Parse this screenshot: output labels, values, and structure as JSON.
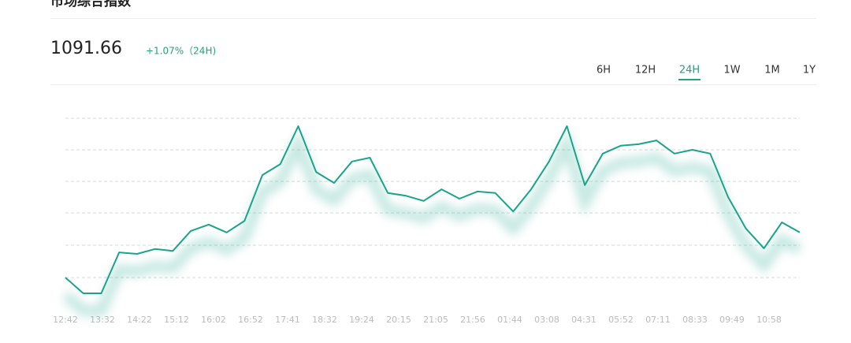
{
  "header": {
    "title": "市场综合指数",
    "price": "1091.66",
    "change": "+1.07%（24H)"
  },
  "tabs": [
    "6H",
    "12H",
    "24H",
    "1W",
    "1M",
    "1Y"
  ],
  "selected_tab": "24H",
  "chart_data": {
    "type": "line",
    "xtick_labels": [
      "12:42",
      "13:32",
      "14:22",
      "15:12",
      "16:02",
      "16:52",
      "17:41",
      "18:32",
      "19:24",
      "20:15",
      "21:05",
      "21:56",
      "01:44",
      "03:08",
      "04:31",
      "05:52",
      "07:11",
      "08:33",
      "09:49",
      "10:58"
    ],
    "values": [
      1079.7,
      1075.5,
      1075.5,
      1086.4,
      1086.0,
      1087.3,
      1086.8,
      1092.1,
      1093.8,
      1091.7,
      1094.8,
      1107.0,
      1109.9,
      1120.0,
      1107.8,
      1104.9,
      1110.6,
      1111.6,
      1102.2,
      1101.5,
      1100.1,
      1103.2,
      1100.7,
      1102.6,
      1102.2,
      1097.3,
      1103.2,
      1110.6,
      1120.0,
      1104.3,
      1112.7,
      1114.8,
      1115.2,
      1116.2,
      1112.7,
      1113.7,
      1112.7,
      1101.1,
      1092.7,
      1087.5,
      1094.4,
      1091.7
    ],
    "color": "#1aa58a",
    "ylim": [
      1071.1,
      1124.2
    ]
  }
}
